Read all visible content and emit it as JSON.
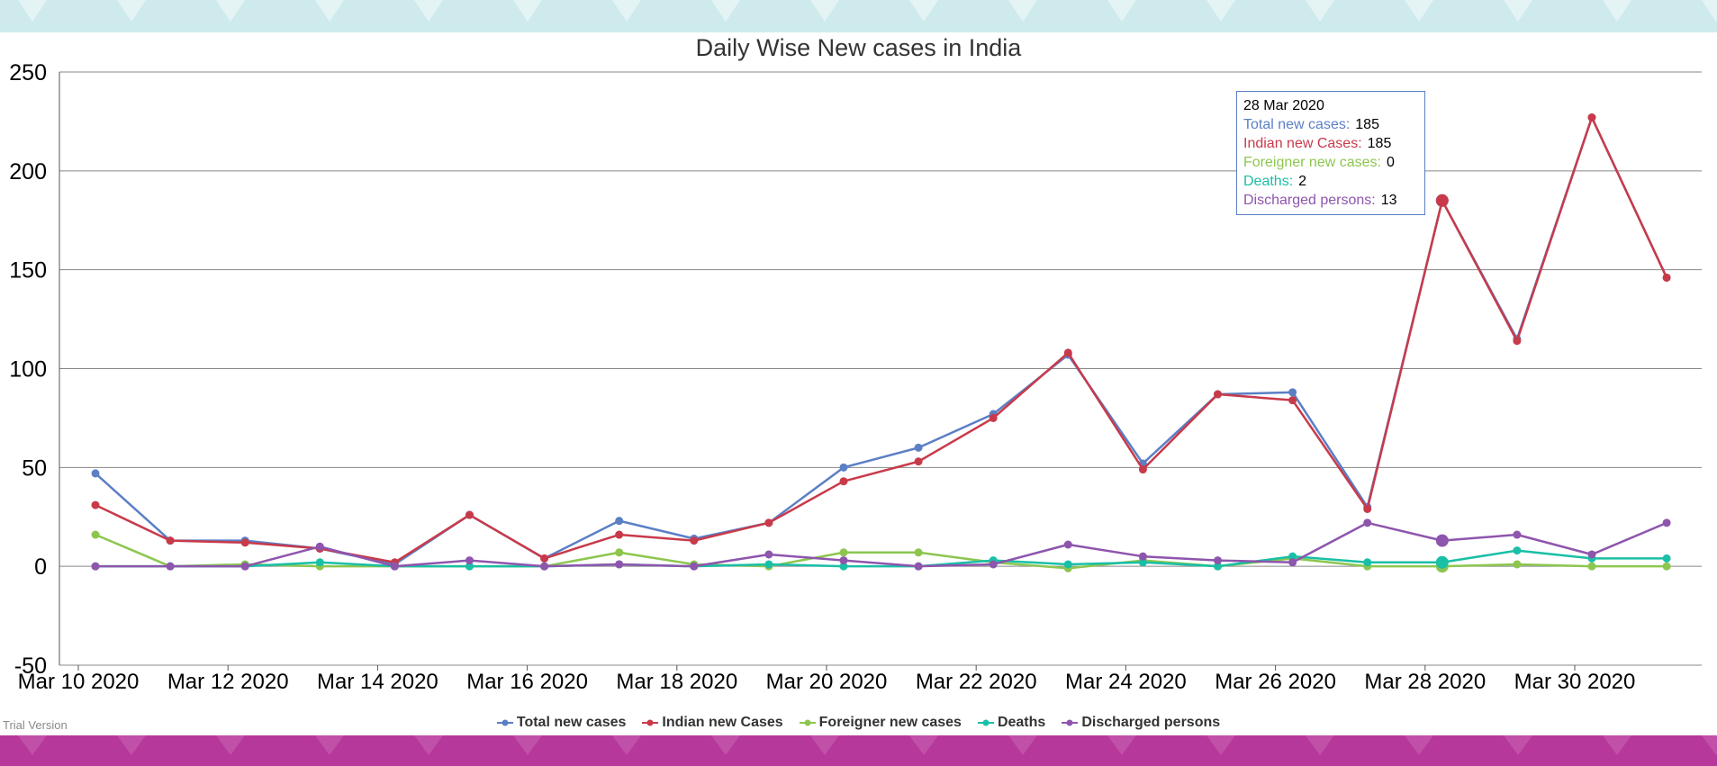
{
  "chart_data": {
    "type": "line",
    "title": "Daily Wise New cases in India",
    "xlabel": "",
    "ylabel": "",
    "ylim": [
      -50,
      250
    ],
    "y_ticks": [
      "250",
      "200",
      "150",
      "100",
      "50",
      "0",
      "-50"
    ],
    "x_ticks": [
      "Mar 10 2020",
      "Mar 12 2020",
      "Mar 14 2020",
      "Mar 16 2020",
      "Mar 18 2020",
      "Mar 20 2020",
      "Mar 22 2020",
      "Mar 24 2020",
      "Mar 26 2020",
      "Mar 28 2020",
      "Mar 30 2020"
    ],
    "x": [
      "Mar 10 2020",
      "Mar 11 2020",
      "Mar 12 2020",
      "Mar 13 2020",
      "Mar 14 2020",
      "Mar 15 2020",
      "Mar 16 2020",
      "Mar 17 2020",
      "Mar 18 2020",
      "Mar 19 2020",
      "Mar 20 2020",
      "Mar 21 2020",
      "Mar 22 2020",
      "Mar 23 2020",
      "Mar 24 2020",
      "Mar 25 2020",
      "Mar 26 2020",
      "Mar 27 2020",
      "Mar 28 2020",
      "Mar 29 2020",
      "Mar 30 2020",
      "Mar 31 2020"
    ],
    "grid": true,
    "legend_position": "bottom-center",
    "series": [
      {
        "name": "Total new cases",
        "color": "#5b7fc5",
        "values": [
          47,
          13,
          13,
          9,
          1,
          26,
          4,
          23,
          14,
          22,
          50,
          60,
          77,
          107,
          52,
          87,
          88,
          30,
          185,
          115,
          227,
          146
        ]
      },
      {
        "name": "Indian new Cases",
        "color": "#c83a4a",
        "values": [
          31,
          13,
          12,
          9,
          2,
          26,
          4,
          16,
          13,
          22,
          43,
          53,
          75,
          108,
          49,
          87,
          84,
          29,
          185,
          114,
          227,
          146
        ]
      },
      {
        "name": "Foreigner new cases",
        "color": "#8cc64f",
        "values": [
          16,
          0,
          1,
          0,
          0,
          0,
          0,
          7,
          1,
          0,
          7,
          7,
          2,
          -1,
          3,
          0,
          4,
          0,
          0,
          1,
          0,
          0
        ]
      },
      {
        "name": "Deaths",
        "color": "#19bfa6",
        "values": [
          0,
          0,
          0,
          2,
          0,
          0,
          0,
          1,
          0,
          1,
          0,
          0,
          3,
          1,
          2,
          0,
          5,
          2,
          2,
          8,
          4,
          4
        ]
      },
      {
        "name": "Discharged persons",
        "color": "#8e55ad",
        "values": [
          0,
          0,
          0,
          10,
          0,
          3,
          0,
          1,
          0,
          6,
          3,
          0,
          1,
          11,
          5,
          3,
          2,
          22,
          13,
          16,
          6,
          22
        ]
      }
    ],
    "tooltip": {
      "date": "28 Mar 2020",
      "index": 18,
      "rows": [
        {
          "label": "Total new cases:",
          "value": "185",
          "color": "#5b7fc5"
        },
        {
          "label": "Indian new Cases:",
          "value": "185",
          "color": "#c83a4a"
        },
        {
          "label": "Foreigner new cases:",
          "value": "0",
          "color": "#8cc64f"
        },
        {
          "label": "Deaths:",
          "value": "2",
          "color": "#19bfa6"
        },
        {
          "label": "Discharged persons:",
          "value": "13",
          "color": "#8e55ad"
        }
      ]
    }
  },
  "watermark": "Trial Version",
  "colors": {
    "top_band": "#cfeaec",
    "bottom_band": "#b5389a",
    "grid": "#888888"
  }
}
